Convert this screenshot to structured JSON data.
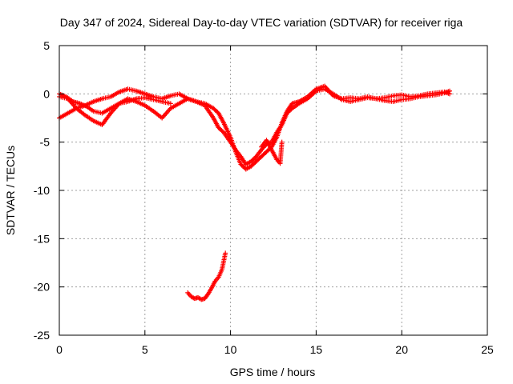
{
  "chart_data": {
    "type": "scatter",
    "title": "Day 347 of 2024, Sidereal Day-to-day VTEC variation (SDTVAR) for receiver riga",
    "xlabel": "GPS time / hours",
    "ylabel": "SDTVAR / TECUs",
    "xlim": [
      0,
      25
    ],
    "ylim": [
      -25,
      5
    ],
    "xticks": [
      0,
      5,
      10,
      15,
      20,
      25
    ],
    "yticks": [
      5,
      0,
      -5,
      -10,
      -15,
      -20,
      -25
    ],
    "grid": true,
    "marker": "+",
    "series": [
      {
        "name": "trace-a",
        "color": "#ff0000",
        "x": [
          0.0,
          0.5,
          1.0,
          1.5,
          2.0,
          2.5,
          3.0,
          3.5,
          4.0,
          4.5,
          5.0,
          5.5,
          6.0,
          6.5,
          7.0,
          7.5,
          8.0,
          8.5,
          9.0,
          9.3,
          9.6,
          10.0,
          10.3,
          10.6,
          10.9,
          11.2,
          11.5,
          11.8,
          12.1,
          12.4,
          12.7,
          13.0,
          13.3,
          13.6,
          14.0,
          14.5,
          15.0,
          15.5,
          16.0,
          16.5,
          17.0,
          17.5,
          18.0,
          18.5,
          19.0,
          19.5,
          20.0,
          20.5,
          21.0,
          21.5,
          22.0,
          22.5,
          22.8
        ],
        "y": [
          -2.5,
          -2.0,
          -1.5,
          -1.2,
          -0.8,
          -0.5,
          -0.3,
          0.2,
          0.5,
          0.3,
          0.0,
          -0.3,
          -0.5,
          -0.2,
          0.0,
          -0.5,
          -0.8,
          -1.0,
          -1.5,
          -2.0,
          -3.0,
          -4.5,
          -6.0,
          -7.3,
          -7.8,
          -7.5,
          -7.0,
          -6.5,
          -6.0,
          -5.5,
          -4.5,
          -3.0,
          -1.8,
          -1.0,
          -0.8,
          -0.3,
          0.5,
          0.8,
          -0.2,
          -0.5,
          -0.4,
          -0.5,
          -0.3,
          -0.5,
          -0.4,
          -0.2,
          -0.1,
          -0.3,
          -0.2,
          0.0,
          0.1,
          0.2,
          0.0
        ]
      },
      {
        "name": "trace-b",
        "color": "#ff0000",
        "x": [
          0.0,
          0.5,
          1.0,
          1.5,
          2.0,
          2.5,
          3.0,
          3.5,
          4.0,
          4.5,
          5.0,
          5.5,
          6.0,
          6.5,
          7.0,
          7.5,
          8.0,
          8.5,
          9.0,
          9.3,
          9.6,
          10.0,
          10.3,
          10.6,
          10.9,
          11.2,
          11.5,
          11.8,
          12.1,
          12.4,
          12.7,
          13.0,
          13.3,
          13.6,
          14.0,
          14.5,
          15.0,
          15.5,
          16.0,
          16.5,
          17.0,
          17.5,
          18.0,
          18.5,
          19.0,
          19.5,
          20.0,
          20.5,
          21.0,
          21.5,
          22.0,
          22.5,
          22.8
        ],
        "y": [
          -0.3,
          -0.5,
          -1.5,
          -2.2,
          -2.8,
          -3.2,
          -2.0,
          -1.0,
          -0.5,
          -0.8,
          -1.2,
          -1.8,
          -2.5,
          -1.5,
          -1.0,
          -0.5,
          -0.8,
          -1.2,
          -2.5,
          -3.5,
          -4.0,
          -5.0,
          -5.8,
          -6.5,
          -7.3,
          -7.0,
          -6.5,
          -5.8,
          -5.2,
          -5.0,
          -4.0,
          -3.2,
          -2.0,
          -1.5,
          -1.0,
          -0.5,
          0.3,
          0.5,
          0.0,
          -0.6,
          -0.8,
          -0.6,
          -0.4,
          -0.5,
          -0.7,
          -0.8,
          -0.6,
          -0.5,
          -0.3,
          -0.2,
          -0.1,
          0.1,
          0.3
        ]
      },
      {
        "name": "trace-c",
        "color": "#ff0000",
        "x": [
          0.0,
          0.4,
          0.8,
          1.2,
          1.6,
          2.0,
          2.5,
          3.0,
          3.5,
          4.0,
          4.5,
          5.0,
          5.5,
          6.0,
          6.5
        ],
        "y": [
          0.0,
          -0.3,
          -0.8,
          -1.0,
          -1.3,
          -1.8,
          -2.0,
          -1.5,
          -1.0,
          -0.8,
          -0.5,
          -0.4,
          -0.6,
          -0.8,
          -1.0
        ]
      },
      {
        "name": "trace-d",
        "color": "#ff0000",
        "x": [
          11.8,
          12.1,
          12.4,
          12.7,
          12.9,
          13.0
        ],
        "y": [
          -5.5,
          -4.8,
          -5.8,
          -6.8,
          -7.2,
          -5.0
        ]
      },
      {
        "name": "trace-e",
        "color": "#ff0000",
        "x": [
          7.5,
          7.7,
          7.9,
          8.1,
          8.3,
          8.5,
          8.7,
          8.9,
          9.1,
          9.3,
          9.5,
          9.7
        ],
        "y": [
          -20.6,
          -21.0,
          -21.2,
          -21.1,
          -21.3,
          -21.2,
          -20.7,
          -20.1,
          -19.4,
          -19.0,
          -18.2,
          -16.5
        ]
      }
    ]
  }
}
